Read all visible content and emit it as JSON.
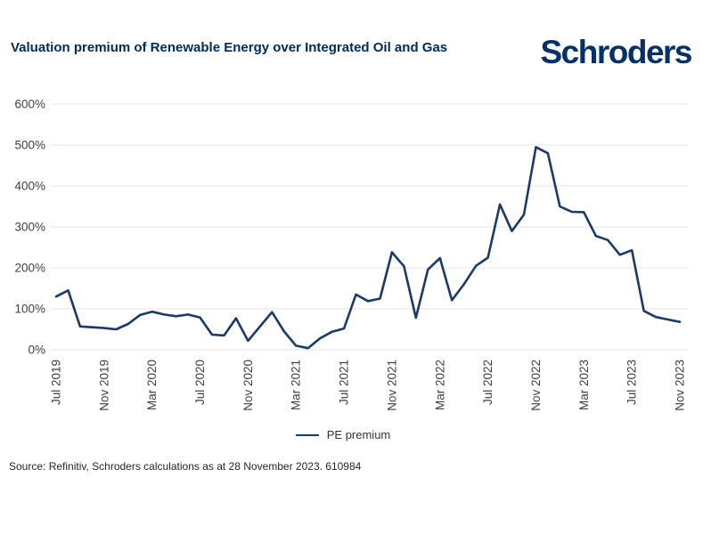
{
  "header": {
    "logo_text": "Schroders"
  },
  "chart_data": {
    "type": "line",
    "title": "Valuation premium of Renewable Energy over Integrated Oil and Gas",
    "xlabel": "",
    "ylabel": "",
    "x_categories": [
      "Jul 2019",
      "Aug 2019",
      "Sep 2019",
      "Oct 2019",
      "Nov 2019",
      "Dec 2019",
      "Jan 2020",
      "Feb 2020",
      "Mar 2020",
      "Apr 2020",
      "May 2020",
      "Jun 2020",
      "Jul 2020",
      "Aug 2020",
      "Sep 2020",
      "Oct 2020",
      "Nov 2020",
      "Dec 2020",
      "Jan 2021",
      "Feb 2021",
      "Mar 2021",
      "Apr 2021",
      "May 2021",
      "Jun 2021",
      "Jul 2021",
      "Aug 2021",
      "Sep 2021",
      "Oct 2021",
      "Nov 2021",
      "Dec 2021",
      "Jan 2022",
      "Feb 2022",
      "Mar 2022",
      "Apr 2022",
      "May 2022",
      "Jun 2022",
      "Jul 2022",
      "Aug 2022",
      "Sep 2022",
      "Oct 2022",
      "Nov 2022",
      "Dec 2022",
      "Jan 2023",
      "Feb 2023",
      "Mar 2023",
      "Apr 2023",
      "May 2023",
      "Jun 2023",
      "Jul 2023",
      "Aug 2023",
      "Sep 2023",
      "Oct 2023",
      "Nov 2023"
    ],
    "series": [
      {
        "name": "PE premium",
        "values": [
          130,
          145,
          57,
          55,
          53,
          50,
          63,
          85,
          93,
          86,
          82,
          86,
          79,
          37,
          35,
          77,
          22,
          57,
          92,
          45,
          10,
          4,
          28,
          44,
          52,
          135,
          119,
          125,
          238,
          204,
          78,
          196,
          224,
          121,
          160,
          205,
          225,
          355,
          290,
          330,
          495,
          480,
          350,
          337,
          336,
          278,
          268,
          232,
          243,
          95,
          80,
          74,
          68
        ]
      }
    ],
    "x_tick_labels": [
      "Jul 2019",
      "Nov 2019",
      "Mar 2020",
      "Jul 2020",
      "Nov 2020",
      "Mar 2021",
      "Jul 2021",
      "Nov 2021",
      "Mar 2022",
      "Jul 2022",
      "Nov 2022",
      "Mar 2023",
      "Jul 2023",
      "Nov 2023"
    ],
    "x_tick_every": 4,
    "y_ticks": [
      0,
      100,
      200,
      300,
      400,
      500,
      600
    ],
    "y_tick_suffix": "%",
    "ylim": [
      0,
      600
    ],
    "grid": "horizontal",
    "legend_position": "bottom-center"
  },
  "legend": {
    "label": "PE premium"
  },
  "footer": {
    "source": "Source: Refinitiv, Schroders calculations as at 28 November 2023. 610984"
  },
  "colors": {
    "title_navy": "#002a5e",
    "logo_navy": "#04306b",
    "line": "#1a3a6e",
    "axis_text": "#404040",
    "gridline": "#e9e9e9",
    "legend_text": "#333333",
    "source_text": "#262626"
  }
}
